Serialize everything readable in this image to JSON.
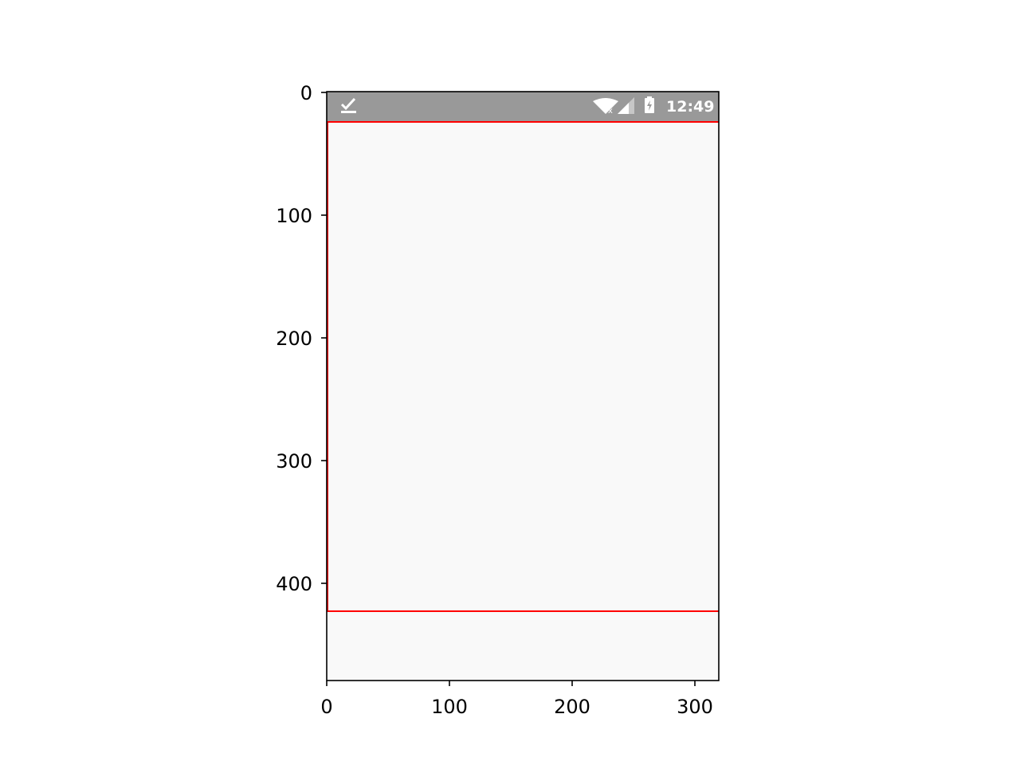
{
  "status_bar": {
    "time": "12:49",
    "background": "#999999",
    "icon_color": "#ffffff",
    "left_icons": [
      "download-done-icon"
    ],
    "right_icons": [
      "wifi-off-icon",
      "cellular-signal-icon",
      "battery-charging-icon"
    ]
  },
  "screen": {
    "background": "#f9f9f9",
    "bounding_box_color": "#ff0000"
  },
  "axes": {
    "x_ticks": [
      "0",
      "100",
      "200",
      "300"
    ],
    "y_ticks": [
      "0",
      "100",
      "200",
      "300",
      "400"
    ],
    "x_range": [
      0,
      320
    ],
    "y_range": [
      480,
      0
    ],
    "frame_color": "#000000"
  }
}
